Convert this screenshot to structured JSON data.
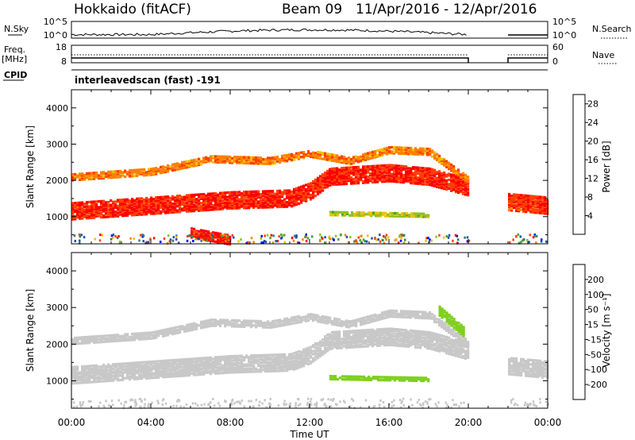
{
  "header": {
    "station": "Hokkaido (fitACF)",
    "beam": "Beam 09",
    "date_range": "11/Apr/2016 - 12/Apr/2016"
  },
  "strips": {
    "nsky_label": "N.Sky",
    "nsky_ticks": [
      "10^5",
      "10^0"
    ],
    "nsearch_label": "N.Search",
    "nsearch_ticks": [
      "10^5",
      "10^0"
    ],
    "freq_label": "Freq.",
    "freq_unit": "[MHz]",
    "freq_ticks": [
      "18",
      "8"
    ],
    "nave_label": "Nave",
    "nave_ticks": [
      "60",
      "0"
    ],
    "cpid_label": "CPID",
    "cpid_text": "interleavedscan (fast) -191"
  },
  "colors": {
    "power": [
      "#0000ff",
      "#1f4fb0",
      "#2e7f6f",
      "#3fa03a",
      "#90c020",
      "#f0c000",
      "#ff8000",
      "#ff4000",
      "#ff0000"
    ],
    "velocity": [
      "#ff0000",
      "#ff5000",
      "#ff9000",
      "#ffcc20",
      "#c8c8c8",
      "#80d020",
      "#30a030",
      "#2060c0",
      "#0000c0"
    ]
  },
  "chart_data": [
    {
      "type": "heatmap",
      "name": "power-panel",
      "ylabel": "Slant Range [km]",
      "yticks": [
        1000,
        2000,
        3000,
        4000
      ],
      "ylim": [
        250,
        4500
      ],
      "xlim": [
        0,
        24
      ],
      "xticks": [
        "00:00",
        "04:00",
        "08:00",
        "12:00",
        "16:00",
        "20:00",
        "00:00"
      ],
      "colorbar_label": "Power [dB]",
      "colorbar_ticks": [
        "4",
        "8",
        "12",
        "16",
        "20",
        "24",
        "28"
      ],
      "colorbar_range": [
        0,
        30
      ],
      "bands": [
        {
          "range_km": [
            [
              0,
              1150
            ],
            [
              4,
              1300
            ],
            [
              8,
              1450
            ],
            [
              11,
              1500
            ],
            [
              12,
              1700
            ],
            [
              13,
              2100
            ],
            [
              16,
              2200
            ],
            [
              18,
              2100
            ],
            [
              20,
              1800
            ]
          ],
          "level": 27,
          "thickness_km": 450
        },
        {
          "range_km": [
            [
              0,
              2100
            ],
            [
              4,
              2250
            ],
            [
              7,
              2600
            ],
            [
              10,
              2550
            ],
            [
              12,
              2750
            ],
            [
              14,
              2550
            ],
            [
              16,
              2850
            ],
            [
              18,
              2800
            ],
            [
              20,
              2000
            ]
          ],
          "level": 22,
          "thickness_km": 200
        },
        {
          "range_km": [
            [
              22,
              1400
            ],
            [
              24,
              1300
            ]
          ],
          "level": 26,
          "thickness_km": 450
        },
        {
          "range_km": [
            [
              13,
              1100
            ],
            [
              18,
              1050
            ]
          ],
          "level": 16,
          "thickness_km": 120
        },
        {
          "range_km": [
            [
              6,
              550
            ],
            [
              8,
              350
            ]
          ],
          "level": 28,
          "thickness_km": 250
        }
      ]
    },
    {
      "type": "heatmap",
      "name": "velocity-panel",
      "ylabel": "Slant Range [km]",
      "yticks": [
        1000,
        2000,
        3000,
        4000
      ],
      "ylim": [
        250,
        4500
      ],
      "xlim": [
        0,
        24
      ],
      "xticks": [
        "00:00",
        "04:00",
        "08:00",
        "12:00",
        "16:00",
        "20:00",
        "00:00"
      ],
      "xlabel": "Time UT",
      "colorbar_label": "Velocity [m s⁻¹]",
      "colorbar_ticks": [
        "-200",
        "-100",
        "-50",
        "-15",
        "15",
        "50",
        "100",
        "200"
      ],
      "bands": [
        {
          "range_km": [
            [
              0,
              1150
            ],
            [
              4,
              1300
            ],
            [
              8,
              1450
            ],
            [
              11,
              1500
            ],
            [
              12,
              1700
            ],
            [
              13,
              2100
            ],
            [
              16,
              2200
            ],
            [
              18,
              2100
            ],
            [
              20,
              1800
            ]
          ],
          "level": 0,
          "thickness_km": 450
        },
        {
          "range_km": [
            [
              0,
              2100
            ],
            [
              4,
              2250
            ],
            [
              7,
              2600
            ],
            [
              10,
              2550
            ],
            [
              12,
              2750
            ],
            [
              14,
              2550
            ],
            [
              16,
              2850
            ],
            [
              18,
              2800
            ],
            [
              20,
              2000
            ]
          ],
          "level": 0,
          "thickness_km": 200
        },
        {
          "range_km": [
            [
              22,
              1400
            ],
            [
              24,
              1300
            ]
          ],
          "level": 0,
          "thickness_km": 450
        },
        {
          "range_km": [
            [
              13,
              1100
            ],
            [
              18,
              1050
            ]
          ],
          "level": 40,
          "thickness_km": 120
        },
        {
          "range_km": [
            [
              18.5,
              2900
            ],
            [
              19.8,
              2300
            ]
          ],
          "level": 40,
          "thickness_km": 250
        }
      ]
    }
  ]
}
